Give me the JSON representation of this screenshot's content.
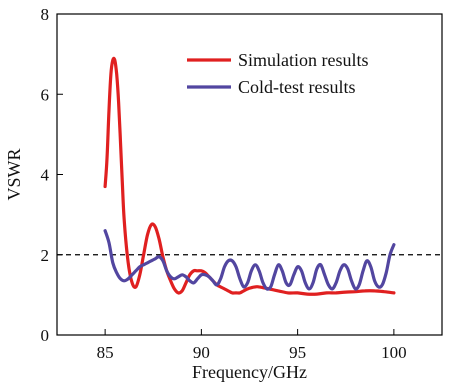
{
  "chart_data": {
    "type": "line",
    "title": "",
    "xlabel": "Frequency/GHz",
    "ylabel": "VSWR",
    "xlim": [
      82.5,
      102.5
    ],
    "ylim": [
      0,
      8
    ],
    "xticks": [
      85,
      90,
      95,
      100
    ],
    "yticks": [
      0,
      2,
      4,
      6,
      8
    ],
    "grid": false,
    "legend_position": "top-right",
    "reference_line": {
      "y": 2,
      "style": "dashed",
      "color": "#000000"
    },
    "series": [
      {
        "name": "Simulation results",
        "color": "#e02020",
        "x": [
          85.0,
          85.1,
          85.2,
          85.3,
          85.4,
          85.5,
          85.6,
          85.7,
          85.8,
          85.9,
          86.0,
          86.2,
          86.4,
          86.6,
          86.8,
          87.0,
          87.2,
          87.4,
          87.6,
          87.8,
          88.0,
          88.2,
          88.4,
          88.6,
          88.8,
          89.0,
          89.2,
          89.4,
          89.6,
          89.8,
          90.0,
          90.2,
          90.4,
          90.6,
          90.8,
          91.0,
          91.2,
          91.4,
          91.6,
          91.8,
          92.0,
          92.2,
          92.4,
          92.6,
          92.8,
          93.0,
          93.5,
          94.0,
          94.5,
          95.0,
          95.5,
          96.0,
          96.5,
          97.0,
          97.5,
          98.0,
          98.5,
          99.0,
          99.5,
          100.0
        ],
        "values": [
          3.7,
          4.4,
          5.6,
          6.5,
          6.85,
          6.85,
          6.5,
          5.8,
          4.8,
          3.7,
          2.8,
          1.8,
          1.3,
          1.2,
          1.5,
          2.0,
          2.5,
          2.75,
          2.7,
          2.4,
          1.95,
          1.6,
          1.35,
          1.15,
          1.05,
          1.1,
          1.3,
          1.5,
          1.6,
          1.6,
          1.6,
          1.55,
          1.45,
          1.35,
          1.25,
          1.2,
          1.15,
          1.1,
          1.05,
          1.05,
          1.05,
          1.1,
          1.15,
          1.18,
          1.2,
          1.2,
          1.15,
          1.1,
          1.05,
          1.05,
          1.02,
          1.02,
          1.05,
          1.05,
          1.07,
          1.08,
          1.1,
          1.1,
          1.08,
          1.05
        ]
      },
      {
        "name": "Cold-test results",
        "color": "#5246a0",
        "x": [
          85.0,
          85.2,
          85.4,
          85.6,
          85.8,
          86.0,
          86.2,
          86.4,
          86.6,
          86.8,
          87.0,
          87.2,
          87.4,
          87.6,
          87.8,
          88.0,
          88.2,
          88.4,
          88.6,
          88.8,
          89.0,
          89.2,
          89.4,
          89.6,
          89.8,
          90.0,
          90.2,
          90.4,
          90.6,
          90.8,
          91.0,
          91.2,
          91.4,
          91.6,
          91.8,
          92.0,
          92.2,
          92.4,
          92.6,
          92.8,
          93.0,
          93.2,
          93.4,
          93.6,
          93.8,
          94.0,
          94.2,
          94.4,
          94.6,
          94.8,
          95.0,
          95.2,
          95.4,
          95.6,
          95.8,
          96.0,
          96.2,
          96.4,
          96.6,
          96.8,
          97.0,
          97.2,
          97.4,
          97.6,
          97.8,
          98.0,
          98.2,
          98.4,
          98.6,
          98.8,
          99.0,
          99.2,
          99.4,
          99.6,
          99.8,
          100.0
        ],
        "values": [
          2.6,
          2.3,
          1.8,
          1.55,
          1.4,
          1.35,
          1.4,
          1.5,
          1.6,
          1.7,
          1.75,
          1.8,
          1.85,
          1.9,
          1.95,
          1.85,
          1.6,
          1.45,
          1.4,
          1.45,
          1.5,
          1.45,
          1.35,
          1.3,
          1.4,
          1.5,
          1.5,
          1.45,
          1.35,
          1.25,
          1.4,
          1.7,
          1.85,
          1.85,
          1.7,
          1.4,
          1.2,
          1.3,
          1.6,
          1.75,
          1.6,
          1.3,
          1.15,
          1.2,
          1.5,
          1.75,
          1.6,
          1.3,
          1.25,
          1.5,
          1.7,
          1.6,
          1.3,
          1.15,
          1.3,
          1.65,
          1.75,
          1.5,
          1.25,
          1.15,
          1.3,
          1.6,
          1.75,
          1.65,
          1.35,
          1.15,
          1.25,
          1.6,
          1.85,
          1.7,
          1.35,
          1.2,
          1.25,
          1.55,
          2.0,
          2.25
        ]
      }
    ]
  }
}
